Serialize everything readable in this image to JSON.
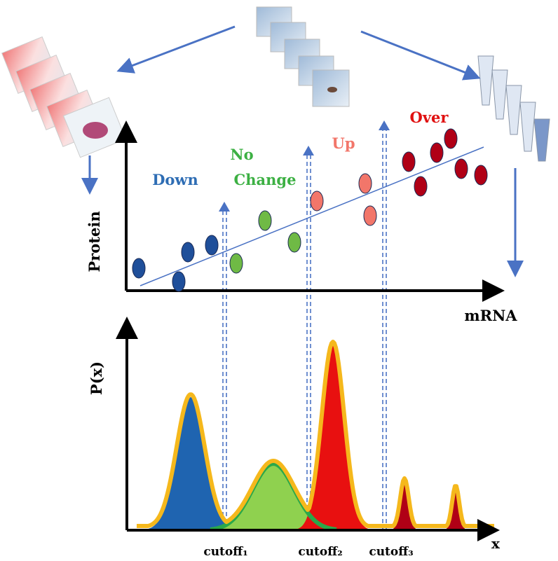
{
  "scatter": {
    "labels": {
      "down": "Down",
      "no_change": [
        "No",
        "Change"
      ],
      "up": "Up",
      "over": "Over"
    },
    "y_label": "Protein",
    "x_label": "mRNA"
  },
  "distribution": {
    "y_label": "P(x)",
    "x_label": "x",
    "cutoffs": [
      "cutoff₁",
      "cutoff₂",
      "cutoff₃"
    ]
  }
}
